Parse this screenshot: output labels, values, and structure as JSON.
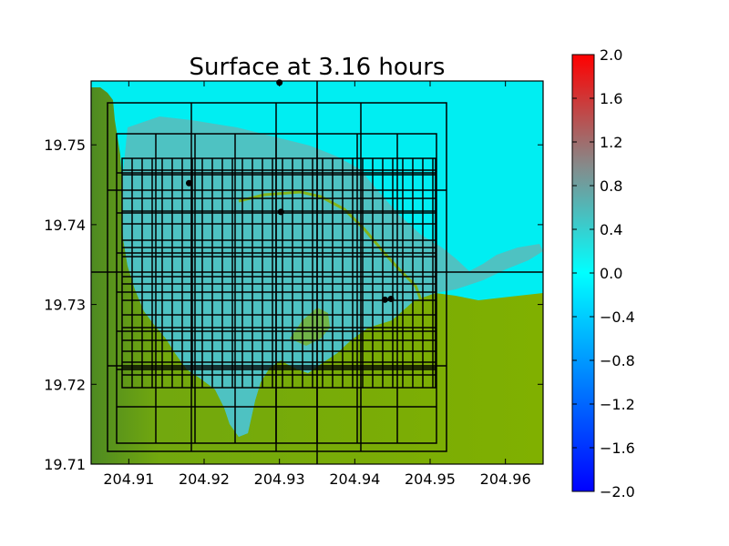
{
  "chart_data": {
    "type": "heatmap",
    "title": "Surface at 3.16 hours",
    "xlabel": "",
    "ylabel": "",
    "xlim": [
      204.905,
      204.965
    ],
    "ylim": [
      19.71,
      19.758
    ],
    "x_ticks": [
      "204.91",
      "204.92",
      "204.93",
      "204.94",
      "204.95",
      "204.96"
    ],
    "y_ticks": [
      "19.71",
      "19.72",
      "19.73",
      "19.74",
      "19.75"
    ],
    "colorbar": {
      "range": [
        -2.0,
        2.0
      ],
      "ticks": [
        "2.0",
        "1.6",
        "1.2",
        "0.8",
        "0.4",
        "0.0",
        "−0.4",
        "−0.8",
        "−1.2",
        "−1.6",
        "−2.0"
      ],
      "colors": {
        "low": "#0000ff",
        "zero": "#00ffff",
        "mid": "#888888",
        "high": "#ff0000"
      }
    },
    "gauges": [
      {
        "x": 204.93,
        "y": 19.7578
      },
      {
        "x": 204.918,
        "y": 19.7452
      },
      {
        "x": 204.9302,
        "y": 19.7416
      },
      {
        "x": 204.944,
        "y": 19.7306
      },
      {
        "x": 204.9448,
        "y": 19.7307
      }
    ],
    "grid_on": false,
    "colors": {
      "land": "#80b000",
      "land_dark": "#5a9618",
      "water": "#00f0f0",
      "wave": "#5cb8b8"
    }
  }
}
